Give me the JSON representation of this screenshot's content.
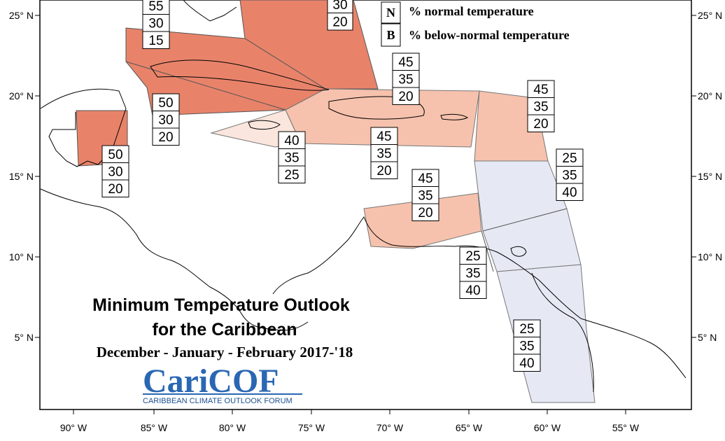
{
  "title": {
    "line1": "Minimum Temperature Outlook",
    "line2": "for the Caribbean",
    "season": "December - January - February 2017-'18"
  },
  "logo": {
    "text": "CariCOF",
    "subtitle": "CARIBBEAN CLIMATE OUTLOOK FORUM"
  },
  "legend": [
    {
      "key": "N",
      "label": "% normal temperature"
    },
    {
      "key": "B",
      "label": "% below-normal temperature"
    }
  ],
  "axes": {
    "x_ticks": [
      "90° W",
      "85° W",
      "80° W",
      "75° W",
      "70° W",
      "65° W",
      "60° W",
      "55° W"
    ],
    "y_ticks": [
      "25° N",
      "20° N",
      "15° N",
      "10° N",
      "5° N"
    ]
  },
  "colors": {
    "above_high": "#e8836a",
    "above_mid": "#f6c2ad",
    "above_low": "#fbe6de",
    "below": "#e6e9f4"
  },
  "regions": [
    {
      "name": "bahamas-north",
      "probs": [
        "30",
        "20"
      ],
      "category": "above_high"
    },
    {
      "name": "cuba-west",
      "probs": [
        "55",
        "30",
        "15"
      ],
      "category": "above_high"
    },
    {
      "name": "cuba-central",
      "probs": [
        "50",
        "30",
        "20"
      ],
      "category": "above_high"
    },
    {
      "name": "belize",
      "probs": [
        "50",
        "30",
        "20"
      ],
      "category": "above_high"
    },
    {
      "name": "jamaica",
      "probs": [
        "40",
        "35",
        "25"
      ],
      "category": "above_low"
    },
    {
      "name": "hispaniola-north",
      "probs": [
        "45",
        "35",
        "20"
      ],
      "category": "above_mid"
    },
    {
      "name": "hispaniola-south",
      "probs": [
        "45",
        "35",
        "20"
      ],
      "category": "above_mid"
    },
    {
      "name": "leeward-islands",
      "probs": [
        "45",
        "35",
        "20"
      ],
      "category": "above_mid"
    },
    {
      "name": "abc-islands",
      "probs": [
        "45",
        "35",
        "20"
      ],
      "category": "above_mid"
    },
    {
      "name": "windward-islands",
      "probs": [
        "25",
        "35",
        "40"
      ],
      "category": "below"
    },
    {
      "name": "trinidad",
      "probs": [
        "25",
        "35",
        "40"
      ],
      "category": "below"
    },
    {
      "name": "guianas",
      "probs": [
        "25",
        "35",
        "40"
      ],
      "category": "below"
    }
  ]
}
